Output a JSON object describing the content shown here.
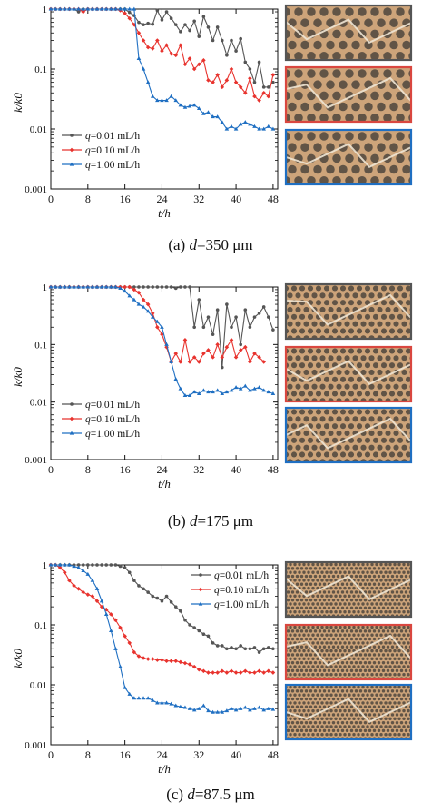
{
  "colors": {
    "series": [
      "#555555",
      "#e8332e",
      "#1f6fc2"
    ],
    "micrograph_borders": [
      "#555555",
      "#d9473f",
      "#1f6fc2"
    ],
    "grain_fill": "#cda47a",
    "pore_fill": "#3c3a36"
  },
  "micrograph_icons": [
    "porous-media-micrograph",
    "porous-media-micrograph",
    "porous-media-micrograph"
  ],
  "chart_data": [
    {
      "type": "line",
      "caption": "(a) d=350 μm",
      "caption_parts": {
        "prefix": "(a) ",
        "var": "d",
        "value": "=350 μm"
      },
      "xlabel": "t/h",
      "ylabel": "k/k0",
      "ylog": true,
      "ylim": [
        0.001,
        1
      ],
      "xlim": [
        0,
        49
      ],
      "xticks": [
        0,
        8,
        16,
        24,
        32,
        40,
        48
      ],
      "yticks": [
        0.001,
        0.01,
        0.1,
        1
      ],
      "ytick_labels": [
        "0.001",
        "0.01",
        "0.1",
        "1"
      ],
      "legend_position": "lower-left",
      "series": [
        {
          "name": "q=0.01 mL/h",
          "name_parts": {
            "var": "q",
            "rest": "=0.01 mL/h"
          },
          "x": [
            0,
            1,
            2,
            3,
            4,
            5,
            6,
            7,
            8,
            9,
            10,
            11,
            12,
            13,
            14,
            15,
            16,
            17,
            18,
            19,
            20,
            21,
            22,
            23,
            24,
            25,
            26,
            27,
            28,
            29,
            30,
            31,
            32,
            33,
            34,
            35,
            36,
            37,
            38,
            39,
            40,
            41,
            42,
            43,
            44,
            45,
            46,
            47,
            48
          ],
          "y": [
            1,
            1,
            1,
            1,
            1,
            1,
            0.9,
            1,
            1,
            1,
            1,
            1,
            1,
            1,
            1,
            1,
            1,
            0.88,
            0.78,
            0.6,
            0.55,
            0.58,
            0.56,
            0.95,
            0.66,
            0.9,
            0.7,
            0.55,
            0.42,
            0.55,
            0.44,
            0.63,
            0.35,
            0.75,
            0.5,
            0.3,
            0.5,
            0.3,
            0.17,
            0.3,
            0.2,
            0.32,
            0.13,
            0.1,
            0.06,
            0.13,
            0.05,
            0.05,
            0.06
          ]
        },
        {
          "name": "q=0.10 mL/h",
          "name_parts": {
            "var": "q",
            "rest": "=0.10 mL/h"
          },
          "x": [
            0,
            1,
            2,
            3,
            4,
            5,
            6,
            7,
            8,
            9,
            10,
            11,
            12,
            13,
            14,
            15,
            16,
            17,
            18,
            19,
            20,
            21,
            22,
            23,
            24,
            25,
            26,
            27,
            28,
            29,
            30,
            31,
            32,
            33,
            34,
            35,
            36,
            37,
            38,
            39,
            40,
            41,
            42,
            43,
            44,
            45,
            46,
            47,
            48
          ],
          "y": [
            1,
            1,
            1,
            1,
            1,
            1,
            1,
            0.9,
            1,
            1,
            1,
            1,
            1,
            1,
            1,
            0.95,
            0.85,
            0.7,
            0.55,
            0.4,
            0.3,
            0.23,
            0.22,
            0.3,
            0.2,
            0.25,
            0.18,
            0.17,
            0.25,
            0.12,
            0.15,
            0.1,
            0.12,
            0.14,
            0.065,
            0.06,
            0.08,
            0.05,
            0.065,
            0.1,
            0.06,
            0.05,
            0.04,
            0.07,
            0.035,
            0.03,
            0.04,
            0.035,
            0.08
          ]
        },
        {
          "name": "q=1.00 mL/h",
          "name_parts": {
            "var": "q",
            "rest": "=1.00 mL/h"
          },
          "x": [
            0,
            1,
            2,
            3,
            4,
            5,
            6,
            7,
            8,
            9,
            10,
            11,
            12,
            13,
            14,
            15,
            16,
            17,
            18,
            19,
            20,
            21,
            22,
            23,
            24,
            25,
            26,
            27,
            28,
            29,
            30,
            31,
            32,
            33,
            34,
            35,
            36,
            37,
            38,
            39,
            40,
            41,
            42,
            43,
            44,
            45,
            46,
            47,
            48
          ],
          "y": [
            1,
            1,
            1,
            1,
            1,
            1,
            1,
            1,
            1,
            1,
            1,
            1,
            1,
            1,
            1,
            1,
            1,
            1,
            1,
            0.15,
            0.1,
            0.06,
            0.035,
            0.03,
            0.03,
            0.03,
            0.035,
            0.03,
            0.025,
            0.023,
            0.024,
            0.025,
            0.022,
            0.018,
            0.019,
            0.016,
            0.016,
            0.013,
            0.01,
            0.011,
            0.01,
            0.012,
            0.013,
            0.012,
            0.011,
            0.01,
            0.01,
            0.011,
            0.01
          ]
        }
      ]
    },
    {
      "type": "line",
      "caption": "(b) d=175 μm",
      "caption_parts": {
        "prefix": "(b) ",
        "var": "d",
        "value": "=175 μm"
      },
      "xlabel": "t/h",
      "ylabel": "k/k0",
      "ylog": true,
      "ylim": [
        0.001,
        1
      ],
      "xlim": [
        0,
        49
      ],
      "xticks": [
        0,
        8,
        16,
        24,
        32,
        40,
        48
      ],
      "yticks": [
        0.001,
        0.01,
        0.1,
        1
      ],
      "ytick_labels": [
        "0.001",
        "0.01",
        "0.1",
        "1"
      ],
      "legend_position": "lower-left",
      "series": [
        {
          "name": "q=0.01 mL/h",
          "name_parts": {
            "var": "q",
            "rest": "=0.01 mL/h"
          },
          "x": [
            0,
            1,
            2,
            3,
            4,
            5,
            6,
            7,
            8,
            9,
            10,
            11,
            12,
            13,
            14,
            15,
            16,
            17,
            18,
            19,
            20,
            21,
            22,
            23,
            24,
            25,
            26,
            27,
            28,
            29,
            30,
            31,
            32,
            33,
            34,
            35,
            36,
            37,
            38,
            39,
            40,
            41,
            42,
            43,
            44,
            45,
            46,
            47,
            48
          ],
          "y": [
            1,
            1,
            1,
            1,
            1,
            1,
            1,
            1,
            1,
            1,
            1,
            1,
            1,
            1,
            1,
            1,
            1,
            1,
            1,
            1,
            1,
            1,
            1,
            1,
            1,
            1,
            1,
            0.95,
            1,
            1,
            1,
            0.2,
            0.6,
            0.2,
            0.3,
            0.15,
            0.4,
            0.04,
            0.5,
            0.2,
            0.3,
            0.1,
            0.4,
            0.2,
            0.3,
            0.35,
            0.45,
            0.3,
            0.18
          ]
        },
        {
          "name": "q=0.10 mL/h",
          "name_parts": {
            "var": "q",
            "rest": "=0.10 mL/h"
          },
          "x": [
            0,
            1,
            2,
            3,
            4,
            5,
            6,
            7,
            8,
            9,
            10,
            11,
            12,
            13,
            14,
            15,
            16,
            17,
            18,
            19,
            20,
            21,
            22,
            23,
            24,
            25,
            26,
            27,
            28,
            29,
            30,
            31,
            32,
            33,
            34,
            35,
            36,
            37,
            38,
            39,
            40,
            41,
            42,
            43,
            44,
            45,
            46
          ],
          "y": [
            1,
            1,
            1,
            1,
            1,
            1,
            1,
            1,
            1,
            1,
            1,
            1,
            1,
            1,
            1,
            1,
            1,
            1,
            0.9,
            0.8,
            0.6,
            0.5,
            0.35,
            0.2,
            0.15,
            0.09,
            0.05,
            0.07,
            0.05,
            0.12,
            0.05,
            0.06,
            0.05,
            0.07,
            0.08,
            0.06,
            0.1,
            0.06,
            0.09,
            0.12,
            0.06,
            0.08,
            0.09,
            0.05,
            0.07,
            0.06,
            0.05
          ]
        },
        {
          "name": "q=1.00 mL/h",
          "name_parts": {
            "var": "q",
            "rest": "=1.00 mL/h"
          },
          "x": [
            0,
            1,
            2,
            3,
            4,
            5,
            6,
            7,
            8,
            9,
            10,
            11,
            12,
            13,
            14,
            15,
            16,
            17,
            18,
            19,
            20,
            21,
            22,
            23,
            24,
            25,
            26,
            27,
            28,
            29,
            30,
            31,
            32,
            33,
            34,
            35,
            36,
            37,
            38,
            39,
            40,
            41,
            42,
            43,
            44,
            45,
            46,
            47,
            48
          ],
          "y": [
            1,
            1,
            1,
            1,
            1,
            1,
            1,
            1,
            1,
            1,
            1,
            1,
            1,
            1,
            1,
            0.95,
            0.85,
            0.7,
            0.6,
            0.5,
            0.45,
            0.38,
            0.3,
            0.25,
            0.2,
            0.1,
            0.05,
            0.025,
            0.017,
            0.013,
            0.013,
            0.015,
            0.014,
            0.016,
            0.015,
            0.015,
            0.016,
            0.014,
            0.015,
            0.016,
            0.018,
            0.017,
            0.019,
            0.016,
            0.017,
            0.018,
            0.016,
            0.015,
            0.014
          ]
        }
      ]
    },
    {
      "type": "line",
      "caption": "(c) d=87.5 μm",
      "caption_parts": {
        "prefix": "(c) ",
        "var": "d",
        "value": "=87.5 μm"
      },
      "xlabel": "t/h",
      "ylabel": "k/k0",
      "ylog": true,
      "ylim": [
        0.001,
        1
      ],
      "xlim": [
        0,
        49
      ],
      "xticks": [
        0,
        8,
        16,
        24,
        32,
        40,
        48
      ],
      "yticks": [
        0.001,
        0.01,
        0.1,
        1
      ],
      "ytick_labels": [
        "0.001",
        "0.01",
        "0.1",
        "1"
      ],
      "legend_position": "top-right",
      "series": [
        {
          "name": "q=0.01 mL/h",
          "name_parts": {
            "var": "q",
            "rest": "=0.01 mL/h"
          },
          "x": [
            0,
            1,
            2,
            3,
            4,
            5,
            6,
            7,
            8,
            9,
            10,
            11,
            12,
            13,
            14,
            15,
            16,
            17,
            18,
            19,
            20,
            21,
            22,
            23,
            24,
            25,
            26,
            27,
            28,
            29,
            30,
            31,
            32,
            33,
            34,
            35,
            36,
            37,
            38,
            39,
            40,
            41,
            42,
            43,
            44,
            45,
            46,
            47,
            48
          ],
          "y": [
            1,
            1,
            1,
            1,
            1,
            1,
            1,
            1,
            1,
            1,
            1,
            1,
            1,
            1,
            1,
            0.95,
            0.9,
            0.75,
            0.55,
            0.45,
            0.4,
            0.35,
            0.3,
            0.28,
            0.25,
            0.3,
            0.24,
            0.2,
            0.17,
            0.12,
            0.1,
            0.09,
            0.08,
            0.07,
            0.065,
            0.05,
            0.045,
            0.045,
            0.04,
            0.042,
            0.04,
            0.045,
            0.04,
            0.04,
            0.042,
            0.035,
            0.04,
            0.042,
            0.04
          ]
        },
        {
          "name": "q=0.10 mL/h",
          "name_parts": {
            "var": "q",
            "rest": "=0.10 mL/h"
          },
          "x": [
            0,
            1,
            2,
            3,
            4,
            5,
            6,
            7,
            8,
            9,
            10,
            11,
            12,
            13,
            14,
            15,
            16,
            17,
            18,
            19,
            20,
            21,
            22,
            23,
            24,
            25,
            26,
            27,
            28,
            29,
            30,
            31,
            32,
            33,
            34,
            35,
            36,
            37,
            38,
            39,
            40,
            41,
            42,
            43,
            44,
            45,
            46,
            47,
            48
          ],
          "y": [
            1,
            1,
            0.9,
            0.75,
            0.55,
            0.45,
            0.4,
            0.35,
            0.32,
            0.3,
            0.25,
            0.2,
            0.18,
            0.15,
            0.12,
            0.09,
            0.065,
            0.05,
            0.035,
            0.03,
            0.028,
            0.027,
            0.027,
            0.026,
            0.026,
            0.025,
            0.025,
            0.025,
            0.024,
            0.023,
            0.022,
            0.02,
            0.018,
            0.017,
            0.016,
            0.016,
            0.016,
            0.017,
            0.016,
            0.017,
            0.016,
            0.016,
            0.017,
            0.016,
            0.016,
            0.017,
            0.016,
            0.017,
            0.016
          ]
        },
        {
          "name": "q=1.00 mL/h",
          "name_parts": {
            "var": "q",
            "rest": "=1.00 mL/h"
          },
          "x": [
            0,
            1,
            2,
            3,
            4,
            5,
            6,
            7,
            8,
            9,
            10,
            11,
            12,
            13,
            14,
            15,
            16,
            17,
            18,
            19,
            20,
            21,
            22,
            23,
            24,
            25,
            26,
            27,
            28,
            29,
            30,
            31,
            32,
            33,
            34,
            35,
            36,
            37,
            38,
            39,
            40,
            41,
            42,
            43,
            44,
            45,
            46,
            47,
            48
          ],
          "y": [
            1,
            1,
            1,
            1,
            1,
            0.95,
            0.9,
            0.8,
            0.7,
            0.55,
            0.4,
            0.25,
            0.15,
            0.08,
            0.04,
            0.02,
            0.009,
            0.007,
            0.006,
            0.006,
            0.006,
            0.006,
            0.0055,
            0.005,
            0.005,
            0.005,
            0.0048,
            0.0045,
            0.0043,
            0.0042,
            0.004,
            0.0038,
            0.004,
            0.0045,
            0.0037,
            0.0035,
            0.0035,
            0.0035,
            0.0037,
            0.004,
            0.0038,
            0.004,
            0.0042,
            0.0038,
            0.004,
            0.0042,
            0.0038,
            0.004,
            0.0039
          ]
        }
      ]
    }
  ]
}
